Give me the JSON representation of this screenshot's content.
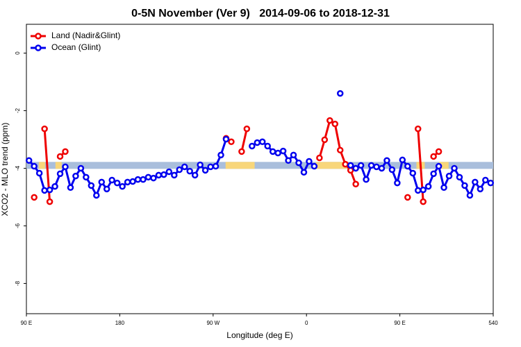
{
  "chart_data": {
    "type": "line",
    "title": "0-5N November (Ver 9)   2014-09-06 to 2018-12-31",
    "x_label": "Longitude (deg E)",
    "y_label": "XCO2 - MLO trend (ppm)",
    "xlim": [
      90,
      540
    ],
    "ylim": [
      -9.05,
      1
    ],
    "xticks": [
      {
        "value": 90,
        "label": "90 E"
      },
      180,
      {
        "value": 270,
        "label": "90 W"
      },
      {
        "value": 360,
        "label": "0"
      },
      {
        "value": 450,
        "label": "90 E"
      },
      540
    ],
    "yticks": [
      0,
      -2,
      -4,
      -6,
      -8
    ],
    "legend": "top-left",
    "band": {
      "y": -3.9,
      "color": "#a9bedc",
      "highlight_color": "#f8d67a",
      "highlight_ranges": [
        [
          102,
          108
        ],
        [
          118,
          124
        ],
        [
          282,
          310
        ],
        [
          369,
          399
        ],
        [
          466,
          474
        ],
        [
          488,
          497
        ]
      ]
    },
    "x": [
      92.5,
      97.5,
      102.5,
      107.5,
      112.5,
      117.5,
      122.5,
      127.5,
      132.5,
      137.5,
      142.5,
      147.5,
      152.5,
      157.5,
      162.5,
      167.5,
      172.5,
      177.5,
      182.5,
      187.5,
      192.5,
      197.5,
      202.5,
      207.5,
      212.5,
      217.5,
      222.5,
      227.5,
      232.5,
      237.5,
      242.5,
      247.5,
      252.5,
      257.5,
      262.5,
      267.5,
      272.5,
      277.5,
      282.5,
      287.5,
      292.5,
      297.5,
      302.5,
      307.5,
      312.5,
      317.5,
      322.5,
      327.5,
      332.5,
      337.5,
      342.5,
      347.5,
      352.5,
      357.5,
      362.5,
      367.5,
      372.5,
      377.5,
      382.5,
      387.5,
      392.5,
      397.5,
      402.5,
      407.5,
      412.5,
      417.5,
      422.5,
      427.5,
      432.5,
      437.5,
      442.5,
      447.5,
      452.5,
      457.5,
      462.5,
      467.5,
      472.5,
      477.5,
      482.5,
      487.5,
      492.5,
      497.5,
      502.5,
      507.5,
      512.5,
      517.5,
      522.5,
      527.5,
      532.5,
      537.5
    ],
    "series": [
      {
        "name": "Land (Nadir&Glint)",
        "color": "#ee0000",
        "values": [
          null,
          -5.01,
          null,
          -2.63,
          -5.16,
          null,
          -3.59,
          -3.42,
          null,
          null,
          null,
          null,
          null,
          null,
          null,
          null,
          null,
          null,
          null,
          null,
          null,
          null,
          null,
          null,
          null,
          null,
          null,
          null,
          null,
          null,
          null,
          null,
          null,
          null,
          null,
          null,
          null,
          null,
          -2.96,
          -3.08,
          null,
          -3.42,
          -2.63,
          null,
          null,
          null,
          null,
          null,
          null,
          null,
          null,
          null,
          null,
          null,
          null,
          null,
          -3.64,
          -3.01,
          -2.34,
          -2.46,
          -3.37,
          -3.86,
          -4.07,
          -4.55,
          null,
          null,
          null,
          null,
          null,
          null,
          null,
          null,
          null,
          -5.01,
          null,
          -2.63,
          -5.16,
          null,
          -3.59,
          -3.42,
          null,
          null,
          null,
          null,
          null,
          null,
          null,
          null,
          null,
          null
        ]
      },
      {
        "name": "Ocean (Glint)",
        "color": "#0000ee",
        "values": [
          -3.73,
          -3.93,
          -4.17,
          -4.77,
          -4.75,
          -4.63,
          -4.19,
          -3.95,
          -4.67,
          -4.27,
          -4.0,
          -4.31,
          -4.6,
          -4.94,
          -4.48,
          -4.72,
          -4.41,
          -4.51,
          -4.63,
          -4.48,
          -4.46,
          -4.39,
          -4.39,
          -4.31,
          -4.34,
          -4.24,
          -4.22,
          -4.12,
          -4.24,
          -4.05,
          -3.95,
          -4.1,
          -4.24,
          -3.88,
          -4.07,
          -3.95,
          -3.93,
          -3.54,
          -2.99,
          null,
          null,
          null,
          null,
          -3.23,
          -3.11,
          -3.08,
          -3.23,
          -3.42,
          -3.47,
          -3.4,
          -3.73,
          -3.54,
          -3.81,
          -4.14,
          -3.76,
          -3.93,
          null,
          null,
          null,
          null,
          -1.4,
          null,
          -3.9,
          -4.0,
          -3.9,
          -4.39,
          -3.9,
          -3.95,
          -4.0,
          -3.73,
          -4.05,
          -4.51,
          -3.71,
          -3.93,
          -4.17,
          -4.77,
          -4.75,
          -4.63,
          -4.19,
          -3.93,
          -4.67,
          -4.27,
          -4.0,
          -4.31,
          -4.6,
          -4.94,
          -4.48,
          -4.72,
          -4.41,
          -4.51
        ]
      }
    ]
  }
}
